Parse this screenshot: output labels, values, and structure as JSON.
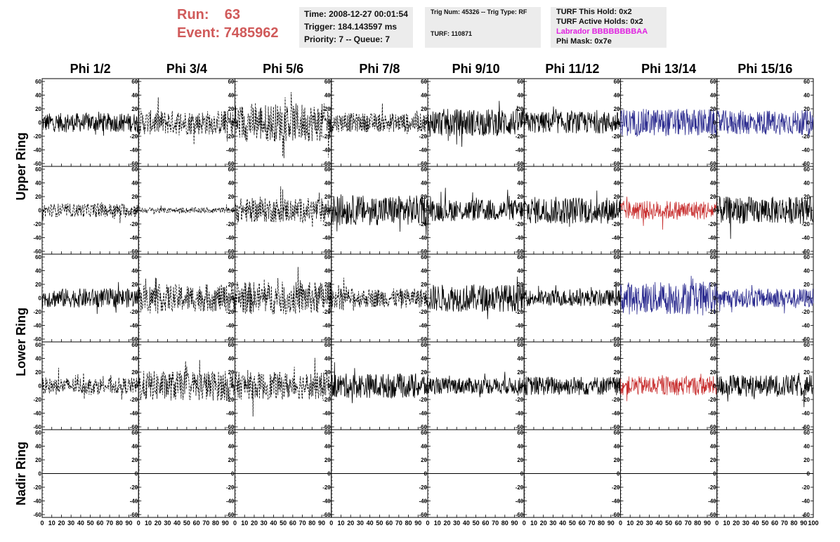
{
  "header": {
    "run_label": "Run:",
    "run_value": "63",
    "event_label": "Event:",
    "event_value": "7485962",
    "time": "Time: 2008-12-27 00:01:54",
    "trigger": "Trigger: 184.143597 ms",
    "priority_queue": "Priority: 7 -- Queue: 7",
    "trig_num_type": "Trig Num: 45326 -- Trig Type: RF",
    "turf": "TURF: 110871",
    "turf_this_hold": "TURF This Hold: 0x2",
    "turf_active_holds": "TURF Active Holds: 0x2",
    "labrador": "Labrador BBBBBBBBAA",
    "phi_mask": "Phi Mask: 0x7e"
  },
  "colors": {
    "header_red": "#d05a5a",
    "labrador_magenta": "#e020e0",
    "trace_black": "#000000",
    "trace_blue": "#2b2b8f",
    "trace_red": "#c83030",
    "info_box_bg": "#ececec"
  },
  "chart_data": {
    "type": "line",
    "columns": [
      "Phi 1/2",
      "Phi 3/4",
      "Phi 5/6",
      "Phi 7/8",
      "Phi 9/10",
      "Phi 11/12",
      "Phi 13/14",
      "Phi 15/16"
    ],
    "rows": [
      "Upper Ring",
      "Upper Ring",
      "Lower Ring",
      "Lower Ring",
      "Nadir Ring"
    ],
    "row_labels": [
      "Upper Ring",
      "Lower Ring",
      "Nadir Ring"
    ],
    "xlim": [
      0,
      100
    ],
    "ylim": [
      -60,
      60
    ],
    "x_ticks": [
      0,
      10,
      20,
      30,
      40,
      50,
      60,
      70,
      80,
      90,
      100
    ],
    "y_ticks": [
      -60,
      -40,
      -20,
      0,
      20,
      40,
      60
    ],
    "x_tick_labels": [
      "0",
      "10",
      "20",
      "30",
      "40",
      "50",
      "60",
      "70",
      "80",
      "90",
      "100"
    ],
    "y_tick_labels": [
      "-60",
      "-40",
      "-20",
      "0",
      "20",
      "40",
      "60"
    ],
    "panels": [
      [
        {
          "style": "solid",
          "color": "black",
          "amplitude": 14
        },
        {
          "style": "dashed",
          "color": "black",
          "amplitude": 18
        },
        {
          "style": "dashed",
          "color": "black",
          "amplitude": 28
        },
        {
          "style": "dashed",
          "color": "black",
          "amplitude": 14
        },
        {
          "style": "solid",
          "color": "black",
          "amplitude": 20
        },
        {
          "style": "solid",
          "color": "black",
          "amplitude": 16
        },
        {
          "style": "solid",
          "color": "blue",
          "amplitude": 20
        },
        {
          "style": "solid",
          "color": "blue",
          "amplitude": 18
        }
      ],
      [
        {
          "style": "dashed",
          "color": "black",
          "amplitude": 10
        },
        {
          "style": "dashed",
          "color": "black",
          "amplitude": 4
        },
        {
          "style": "dashed",
          "color": "black",
          "amplitude": 18
        },
        {
          "style": "solid",
          "color": "black",
          "amplitude": 22
        },
        {
          "style": "solid",
          "color": "black",
          "amplitude": 16
        },
        {
          "style": "solid",
          "color": "black",
          "amplitude": 20
        },
        {
          "style": "solid",
          "color": "red",
          "amplitude": 14
        },
        {
          "style": "solid",
          "color": "black",
          "amplitude": 20
        }
      ],
      [
        {
          "style": "solid",
          "color": "black",
          "amplitude": 14
        },
        {
          "style": "dashed",
          "color": "black",
          "amplitude": 20
        },
        {
          "style": "dashed",
          "color": "black",
          "amplitude": 24
        },
        {
          "style": "dashed",
          "color": "black",
          "amplitude": 14
        },
        {
          "style": "solid",
          "color": "black",
          "amplitude": 20
        },
        {
          "style": "solid",
          "color": "black",
          "amplitude": 12
        },
        {
          "style": "solid",
          "color": "blue",
          "amplitude": 24
        },
        {
          "style": "solid",
          "color": "blue",
          "amplitude": 14
        }
      ],
      [
        {
          "style": "dashed",
          "color": "black",
          "amplitude": 12
        },
        {
          "style": "dashed",
          "color": "black",
          "amplitude": 22
        },
        {
          "style": "dashed",
          "color": "black",
          "amplitude": 20
        },
        {
          "style": "solid",
          "color": "black",
          "amplitude": 18
        },
        {
          "style": "solid",
          "color": "black",
          "amplitude": 12
        },
        {
          "style": "solid",
          "color": "black",
          "amplitude": 14
        },
        {
          "style": "solid",
          "color": "red",
          "amplitude": 14
        },
        {
          "style": "solid",
          "color": "black",
          "amplitude": 16
        }
      ],
      [
        {
          "style": "flat",
          "color": "black",
          "amplitude": 0
        },
        {
          "style": "flat",
          "color": "black",
          "amplitude": 0
        },
        {
          "style": "flat",
          "color": "black",
          "amplitude": 0
        },
        {
          "style": "flat",
          "color": "black",
          "amplitude": 0
        },
        {
          "style": "flat",
          "color": "black",
          "amplitude": 0
        },
        {
          "style": "flat",
          "color": "black",
          "amplitude": 0
        },
        {
          "style": "flat",
          "color": "black",
          "amplitude": 0
        },
        {
          "style": "flat",
          "color": "black",
          "amplitude": 0
        }
      ]
    ]
  }
}
